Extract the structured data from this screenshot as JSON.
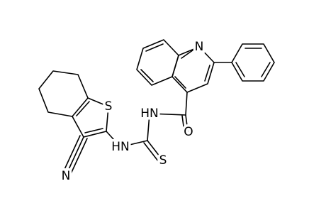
{
  "atoms": [
    {
      "label": "N"
    },
    {
      "label": "S"
    },
    {
      "label": "HN"
    },
    {
      "label": "O"
    },
    {
      "label": "HN"
    },
    {
      "label": "S"
    },
    {
      "label": "N"
    }
  ]
}
